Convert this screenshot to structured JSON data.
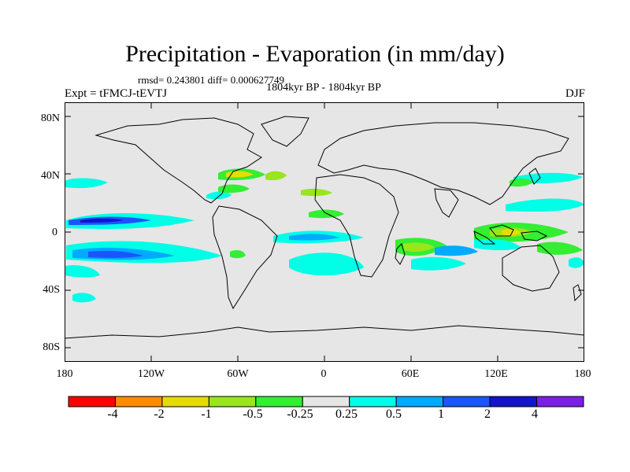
{
  "header": {
    "title": "Precipitation - Evaporation (in mm/day)",
    "stats": "rmsd= 0.243801 diff= 0.000627749",
    "period": "1804kyr BP - 1804kyr BP",
    "experiment": "Expt = tFMCJ-tEVTJ",
    "season": "DJF"
  },
  "map": {
    "latitude_labels": [
      "80N",
      "40N",
      "0",
      "40S",
      "80S"
    ],
    "longitude_labels": [
      "180",
      "120W",
      "60W",
      "0",
      "60E",
      "120E",
      "180"
    ],
    "background_color": "#e6e6e6"
  },
  "colorbar": {
    "labels": [
      "-4",
      "-2",
      "-1",
      "-0.5",
      "-0.25",
      "0.25",
      "0.5",
      "1",
      "2",
      "4"
    ],
    "colors": [
      "#ff0000",
      "#ff8c00",
      "#e6dc00",
      "#99e61a",
      "#33ee33",
      "#e6e6e6",
      "#00ffe6",
      "#00aaff",
      "#1a55ff",
      "#1414cc",
      "#7a1fe6"
    ]
  }
}
